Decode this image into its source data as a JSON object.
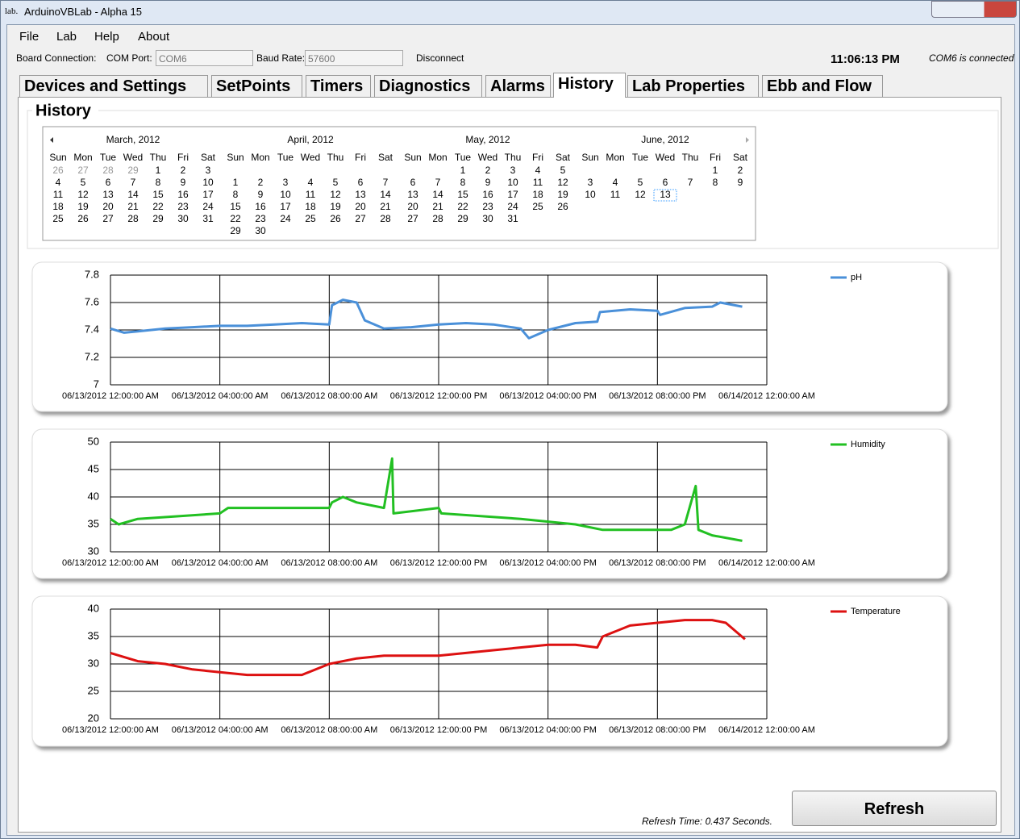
{
  "window": {
    "icon": "lab.",
    "title": "ArduinoVBLab - Alpha 15"
  },
  "menu": [
    "File",
    "Lab",
    "Help",
    "About"
  ],
  "toolbar": {
    "board_label": "Board Connection:",
    "com_label": "COM Port:",
    "com_value": "COM6",
    "baud_label": "Baud Rate:",
    "baud_value": "57600",
    "disconnect": "Disconnect",
    "clock": "11:06:13 PM",
    "status": "COM6 is connected"
  },
  "tabs": [
    "Devices and Settings",
    "SetPoints",
    "Timers",
    "Diagnostics",
    "Alarms",
    "History",
    "Lab Properties",
    "Ebb and Flow"
  ],
  "selected_tab": "History",
  "section_title": "History",
  "calendar": {
    "weekdays": [
      "Sun",
      "Mon",
      "Tue",
      "Wed",
      "Thu",
      "Fri",
      "Sat"
    ],
    "months": [
      {
        "title": "March, 2012",
        "prev_month_days": [
          26,
          27,
          28,
          29
        ],
        "weeks": [
          [
            null,
            null,
            null,
            null,
            1,
            2,
            3
          ],
          [
            4,
            5,
            6,
            7,
            8,
            9,
            10
          ],
          [
            11,
            12,
            13,
            14,
            15,
            16,
            17
          ],
          [
            18,
            19,
            20,
            21,
            22,
            23,
            24
          ],
          [
            25,
            26,
            27,
            28,
            29,
            30,
            31
          ]
        ]
      },
      {
        "title": "April, 2012",
        "weeks": [
          [
            null,
            null,
            null,
            null,
            null,
            null,
            null
          ],
          [
            1,
            2,
            3,
            4,
            5,
            6,
            7
          ],
          [
            8,
            9,
            10,
            11,
            12,
            13,
            14
          ],
          [
            15,
            16,
            17,
            18,
            19,
            20,
            21
          ],
          [
            22,
            23,
            24,
            25,
            26,
            27,
            28
          ],
          [
            29,
            30,
            null,
            null,
            null,
            null,
            null
          ]
        ]
      },
      {
        "title": "May, 2012",
        "weeks": [
          [
            null,
            null,
            1,
            2,
            3,
            4,
            5
          ],
          [
            6,
            7,
            8,
            9,
            10,
            11,
            12
          ],
          [
            13,
            14,
            15,
            16,
            17,
            18,
            19
          ],
          [
            20,
            21,
            22,
            23,
            24,
            25,
            26
          ],
          [
            27,
            28,
            29,
            30,
            31,
            null,
            null
          ]
        ]
      },
      {
        "title": "June, 2012",
        "weeks": [
          [
            null,
            null,
            null,
            null,
            null,
            1,
            2
          ],
          [
            3,
            4,
            5,
            6,
            7,
            8,
            9
          ],
          [
            10,
            11,
            12,
            13,
            null,
            null,
            null
          ]
        ]
      }
    ]
  },
  "chart_data": [
    {
      "type": "line",
      "grid": true,
      "legend": "right",
      "x": [
        "2012-06-13T00:00",
        "2012-06-13T00:30",
        "2012-06-13T01:00",
        "2012-06-13T02:00",
        "2012-06-13T03:00",
        "2012-06-13T04:00",
        "2012-06-13T05:00",
        "2012-06-13T06:00",
        "2012-06-13T07:00",
        "2012-06-13T08:00",
        "2012-06-13T08:06",
        "2012-06-13T08:30",
        "2012-06-13T09:00",
        "2012-06-13T09:18",
        "2012-06-13T10:00",
        "2012-06-13T11:00",
        "2012-06-13T12:00",
        "2012-06-13T13:00",
        "2012-06-13T14:00",
        "2012-06-13T15:00",
        "2012-06-13T15:18",
        "2012-06-13T16:00",
        "2012-06-13T17:00",
        "2012-06-13T17:48",
        "2012-06-13T17:54",
        "2012-06-13T19:00",
        "2012-06-13T20:00",
        "2012-06-13T20:06",
        "2012-06-13T21:00",
        "2012-06-13T22:00",
        "2012-06-13T22:18",
        "2012-06-13T23:06"
      ],
      "series": [
        {
          "name": "pH",
          "color": "#4a90d9",
          "values": [
            7.41,
            7.38,
            7.39,
            7.41,
            7.42,
            7.43,
            7.43,
            7.44,
            7.45,
            7.44,
            7.58,
            7.62,
            7.6,
            7.47,
            7.41,
            7.42,
            7.44,
            7.45,
            7.44,
            7.41,
            7.34,
            7.4,
            7.45,
            7.46,
            7.53,
            7.55,
            7.54,
            7.51,
            7.56,
            7.57,
            7.6,
            7.57
          ]
        }
      ],
      "xlim": [
        "2012-06-13T00:00",
        "2012-06-14T00:00"
      ],
      "xticks": [
        {
          "value": "2012-06-13T00:00",
          "label": "06/13/2012 12:00:00 AM"
        },
        {
          "value": "2012-06-13T04:00",
          "label": "06/13/2012 04:00:00 AM"
        },
        {
          "value": "2012-06-13T08:00",
          "label": "06/13/2012 08:00:00 AM"
        },
        {
          "value": "2012-06-13T12:00",
          "label": "06/13/2012 12:00:00 PM"
        },
        {
          "value": "2012-06-13T16:00",
          "label": "06/13/2012 04:00:00 PM"
        },
        {
          "value": "2012-06-13T20:00",
          "label": "06/13/2012 08:00:00 PM"
        },
        {
          "value": "2012-06-14T00:00",
          "label": "06/14/2012 12:00:00 AM"
        }
      ],
      "ylim": [
        7,
        7.8
      ],
      "yticks": [
        7,
        7.2,
        7.4,
        7.6,
        7.8
      ]
    },
    {
      "type": "line",
      "grid": true,
      "legend": "right",
      "x": [
        "2012-06-13T00:00",
        "2012-06-13T00:18",
        "2012-06-13T01:00",
        "2012-06-13T04:00",
        "2012-06-13T04:18",
        "2012-06-13T08:00",
        "2012-06-13T08:06",
        "2012-06-13T08:30",
        "2012-06-13T09:00",
        "2012-06-13T10:00",
        "2012-06-13T10:18",
        "2012-06-13T10:21",
        "2012-06-13T12:00",
        "2012-06-13T12:06",
        "2012-06-13T15:00",
        "2012-06-13T17:00",
        "2012-06-13T18:00",
        "2012-06-13T20:30",
        "2012-06-13T21:00",
        "2012-06-13T21:24",
        "2012-06-13T21:30",
        "2012-06-13T22:00",
        "2012-06-13T23:06"
      ],
      "series": [
        {
          "name": "Humidity",
          "color": "#22c022",
          "values": [
            36,
            35,
            36,
            37,
            38,
            38,
            39,
            40,
            39,
            38,
            47,
            37,
            38,
            37,
            36,
            35,
            34,
            34,
            35,
            42,
            34,
            33,
            32
          ]
        }
      ],
      "xlim": [
        "2012-06-13T00:00",
        "2012-06-14T00:00"
      ],
      "xticks": [
        {
          "value": "2012-06-13T00:00",
          "label": "06/13/2012 12:00:00 AM"
        },
        {
          "value": "2012-06-13T04:00",
          "label": "06/13/2012 04:00:00 AM"
        },
        {
          "value": "2012-06-13T08:00",
          "label": "06/13/2012 08:00:00 AM"
        },
        {
          "value": "2012-06-13T12:00",
          "label": "06/13/2012 12:00:00 PM"
        },
        {
          "value": "2012-06-13T16:00",
          "label": "06/13/2012 04:00:00 PM"
        },
        {
          "value": "2012-06-13T20:00",
          "label": "06/13/2012 08:00:00 PM"
        },
        {
          "value": "2012-06-14T00:00",
          "label": "06/14/2012 12:00:00 AM"
        }
      ],
      "ylim": [
        30,
        50
      ],
      "yticks": [
        30,
        35,
        40,
        45,
        50
      ]
    },
    {
      "type": "line",
      "grid": true,
      "legend": "right",
      "x": [
        "2012-06-13T00:00",
        "2012-06-13T01:00",
        "2012-06-13T02:00",
        "2012-06-13T03:00",
        "2012-06-13T04:00",
        "2012-06-13T05:00",
        "2012-06-13T06:00",
        "2012-06-13T07:00",
        "2012-06-13T08:00",
        "2012-06-13T09:00",
        "2012-06-13T10:00",
        "2012-06-13T12:00",
        "2012-06-13T14:00",
        "2012-06-13T16:00",
        "2012-06-13T17:00",
        "2012-06-13T17:48",
        "2012-06-13T18:00",
        "2012-06-13T19:00",
        "2012-06-13T20:00",
        "2012-06-13T21:00",
        "2012-06-13T22:00",
        "2012-06-13T22:30",
        "2012-06-13T23:12"
      ],
      "series": [
        {
          "name": "Temperature",
          "color": "#dd1111",
          "values": [
            32,
            30.5,
            30,
            29,
            28.5,
            28,
            28,
            28,
            30,
            31,
            31.5,
            31.5,
            32.5,
            33.5,
            33.5,
            33,
            35,
            37,
            37.5,
            38,
            38,
            37.5,
            34.5
          ]
        }
      ],
      "xlim": [
        "2012-06-13T00:00",
        "2012-06-14T00:00"
      ],
      "xticks": [
        {
          "value": "2012-06-13T00:00",
          "label": "06/13/2012 12:00:00 AM"
        },
        {
          "value": "2012-06-13T04:00",
          "label": "06/13/2012 04:00:00 AM"
        },
        {
          "value": "2012-06-13T08:00",
          "label": "06/13/2012 08:00:00 AM"
        },
        {
          "value": "2012-06-13T12:00",
          "label": "06/13/2012 12:00:00 PM"
        },
        {
          "value": "2012-06-13T16:00",
          "label": "06/13/2012 04:00:00 PM"
        },
        {
          "value": "2012-06-13T20:00",
          "label": "06/13/2012 08:00:00 PM"
        },
        {
          "value": "2012-06-14T00:00",
          "label": "06/14/2012 12:00:00 AM"
        }
      ],
      "ylim": [
        20,
        40
      ],
      "yticks": [
        20,
        25,
        30,
        35,
        40
      ]
    }
  ],
  "footer": {
    "refresh_time": "Refresh Time: 0.437 Seconds.",
    "refresh_button": "Refresh"
  }
}
